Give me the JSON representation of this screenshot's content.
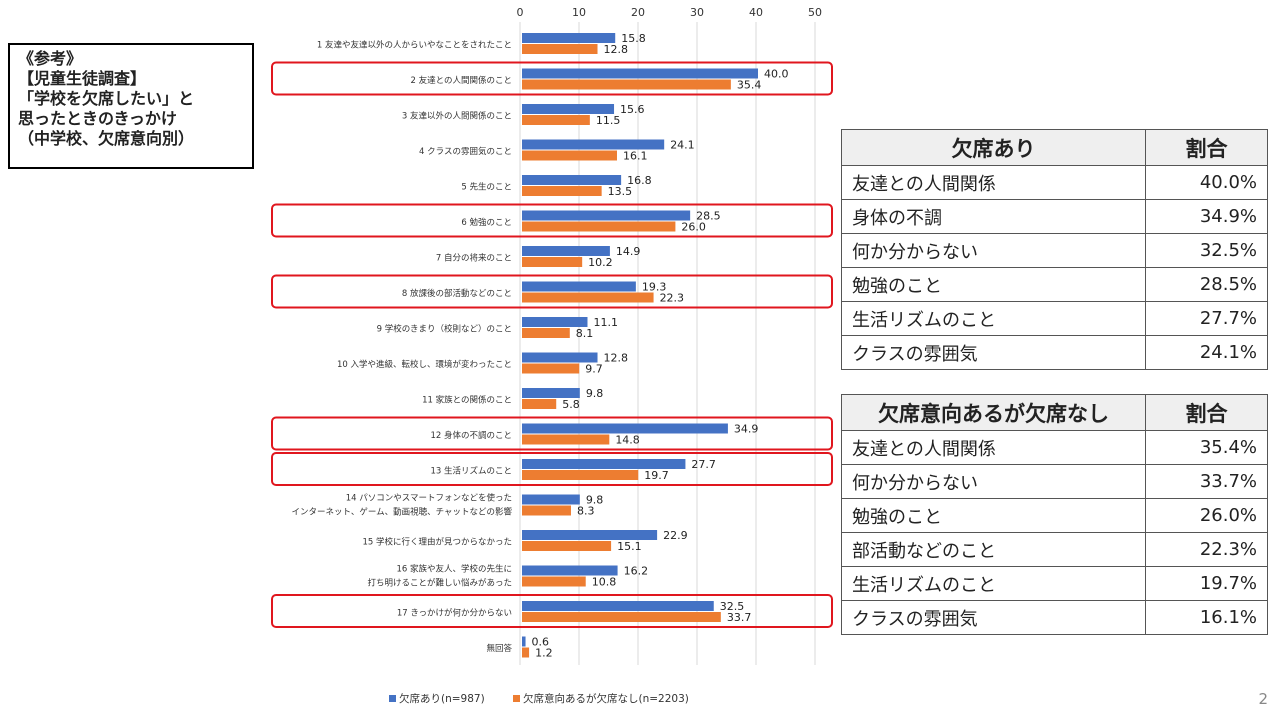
{
  "reference": {
    "lines": [
      "《参考》",
      "【児童生徒調査】",
      "「学校を欠席したい」と",
      "思ったときのきっかけ",
      "（中学校、欠席意向別）"
    ]
  },
  "colors": {
    "series1": "#4472C4",
    "series2": "#ED7D31",
    "highlight": "#E0161E",
    "grid": "#d9d9d9"
  },
  "chart_data": {
    "type": "bar",
    "orientation": "horizontal",
    "categories": [
      [
        "1 友達や友達以外の人からいやなことをされたこと"
      ],
      [
        "2 友達との人間関係のこと"
      ],
      [
        "3 友達以外の人間関係のこと"
      ],
      [
        "4 クラスの雰囲気のこと"
      ],
      [
        "5 先生のこと"
      ],
      [
        "6 勉強のこと"
      ],
      [
        "7 自分の将来のこと"
      ],
      [
        "8 放課後の部活動などのこと"
      ],
      [
        "9 学校のきまり（校則など）のこと"
      ],
      [
        "10 入学や進級、転校し、環境が変わったこと"
      ],
      [
        "11 家族との関係のこと"
      ],
      [
        "12 身体の不調のこと"
      ],
      [
        "13 生活リズムのこと"
      ],
      [
        "14 パソコンやスマートフォンなどを使った",
        "インターネット、ゲーム、動画視聴、チャットなどの影響"
      ],
      [
        "15 学校に行く理由が見つからなかった"
      ],
      [
        "16 家族や友人、学校の先生に",
        "打ち明けることが難しい悩みがあった"
      ],
      [
        "17 きっかけが何か分からない"
      ],
      [
        "無回答"
      ]
    ],
    "series": [
      {
        "name": "欠席あり(n=987)",
        "values": [
          15.8,
          40.0,
          15.6,
          24.1,
          16.8,
          28.5,
          14.9,
          19.3,
          11.1,
          12.8,
          9.8,
          34.9,
          27.7,
          9.8,
          22.9,
          16.2,
          32.5,
          0.6
        ],
        "labels": [
          "15.8",
          "40.0",
          "15.6",
          "24.1",
          "16.8",
          "28.5",
          "14.9",
          "19.3",
          "11.1",
          "12.8",
          "9.8",
          "34.9",
          "27.7",
          "9.8",
          "22.9",
          "16.2",
          "32.5",
          "0.6"
        ]
      },
      {
        "name": "欠席意向あるが欠席なし(n=2203)",
        "values": [
          12.8,
          35.4,
          11.5,
          16.1,
          13.5,
          26.0,
          10.2,
          22.3,
          8.1,
          9.7,
          5.8,
          14.8,
          19.7,
          8.3,
          15.1,
          10.8,
          33.7,
          1.2
        ],
        "labels": [
          "12.8",
          "35.4",
          "11.5",
          "16.1",
          "13.5",
          "26.0",
          "10.2",
          "22.3",
          "8.1",
          "9.7",
          "5.8",
          "14.8",
          "19.7",
          "8.3",
          "15.1",
          "10.8",
          "33.7",
          "1.2"
        ]
      }
    ],
    "xlim": [
      0,
      50
    ],
    "xticks": [
      "0",
      "10",
      "20",
      "30",
      "40",
      "50"
    ],
    "grid": true,
    "legend": "bottom",
    "highlighted_categories": [
      1,
      5,
      7,
      11,
      12,
      16
    ]
  },
  "table1": {
    "headers": [
      "欠席あり",
      "割合"
    ],
    "rows": [
      [
        "友達との人間関係",
        "40.0%"
      ],
      [
        "身体の不調",
        "34.9%"
      ],
      [
        "何か分からない",
        "32.5%"
      ],
      [
        "勉強のこと",
        "28.5%"
      ],
      [
        "生活リズムのこと",
        "27.7%"
      ],
      [
        "クラスの雰囲気",
        "24.1%"
      ]
    ]
  },
  "table2": {
    "headers": [
      "欠席意向あるが欠席なし",
      "割合"
    ],
    "rows": [
      [
        "友達との人間関係",
        "35.4%"
      ],
      [
        "何か分からない",
        "33.7%"
      ],
      [
        "勉強のこと",
        "26.0%"
      ],
      [
        "部活動などのこと",
        "22.3%"
      ],
      [
        "生活リズムのこと",
        "19.7%"
      ],
      [
        "クラスの雰囲気",
        "16.1%"
      ]
    ]
  },
  "slide_number": "2"
}
